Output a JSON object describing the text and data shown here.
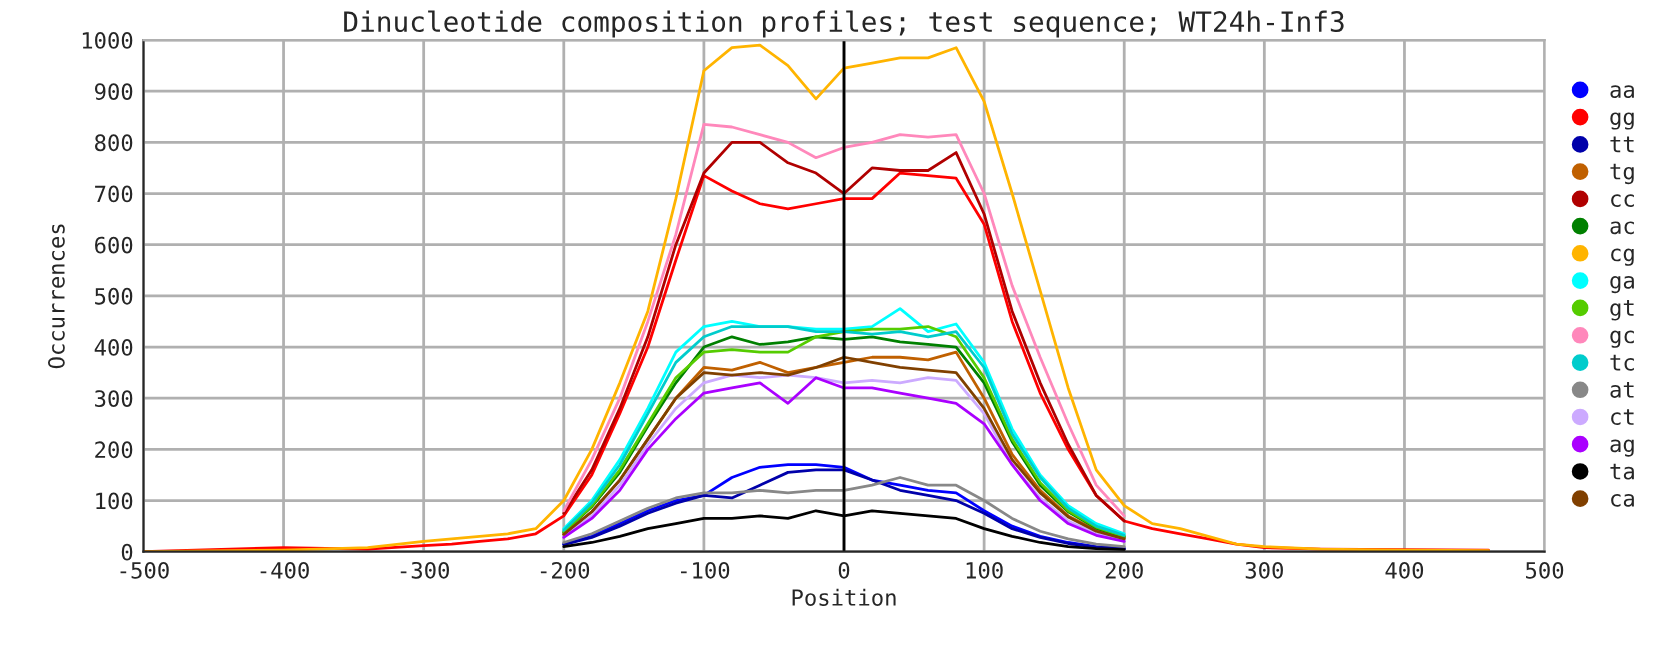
{
  "chart_data": {
    "type": "line",
    "title": "Dinucleotide composition profiles; test sequence; WT24h-Inf3",
    "xlabel": "Position",
    "ylabel": "Occurrences",
    "x": [
      -500,
      -400,
      -340,
      -300,
      -280,
      -260,
      -240,
      -220,
      -200,
      -180,
      -160,
      -140,
      -120,
      -100,
      -80,
      -60,
      -40,
      -20,
      0,
      20,
      40,
      60,
      80,
      100,
      120,
      140,
      160,
      180,
      200,
      220,
      240,
      260,
      280,
      300,
      340,
      400,
      460
    ],
    "xlim": [
      -500,
      500
    ],
    "xticks": [
      -500,
      -400,
      -300,
      -200,
      -100,
      0,
      100,
      200,
      300,
      400,
      500
    ],
    "ylim": [
      0,
      1000
    ],
    "yticks": [
      0,
      100,
      200,
      300,
      400,
      500,
      600,
      700,
      800,
      900,
      1000
    ],
    "grid": true,
    "legend": "right",
    "ref_lines": [
      {
        "axis": "x",
        "value": 0,
        "color": "#000000"
      }
    ],
    "series": [
      {
        "name": "aa",
        "color": "#0000ff",
        "values": [
          null,
          null,
          null,
          null,
          null,
          null,
          null,
          null,
          15,
          30,
          55,
          80,
          100,
          110,
          145,
          165,
          170,
          170,
          165,
          140,
          130,
          120,
          115,
          80,
          50,
          30,
          18,
          10,
          6,
          null,
          null,
          null,
          null,
          null,
          null,
          null,
          null
        ]
      },
      {
        "name": "gg",
        "color": "#ff0000",
        "values": [
          0,
          8,
          5,
          12,
          15,
          20,
          25,
          35,
          70,
          150,
          270,
          400,
          570,
          735,
          705,
          680,
          670,
          680,
          690,
          690,
          740,
          735,
          730,
          640,
          450,
          310,
          200,
          110,
          60,
          45,
          35,
          25,
          15,
          8,
          5,
          4,
          3
        ]
      },
      {
        "name": "tt",
        "color": "#0000aa",
        "values": [
          null,
          null,
          null,
          null,
          null,
          null,
          null,
          null,
          14,
          28,
          50,
          75,
          95,
          110,
          105,
          130,
          155,
          160,
          160,
          140,
          120,
          110,
          100,
          75,
          45,
          28,
          16,
          9,
          6,
          null,
          null,
          null,
          null,
          null,
          null,
          null,
          null
        ]
      },
      {
        "name": "tg",
        "color": "#c06000",
        "values": [
          null,
          null,
          null,
          null,
          null,
          null,
          null,
          null,
          34,
          78,
          140,
          220,
          300,
          360,
          355,
          370,
          350,
          360,
          370,
          380,
          380,
          375,
          390,
          300,
          190,
          120,
          70,
          42,
          27,
          null,
          null,
          null,
          null,
          null,
          null,
          null,
          null
        ]
      },
      {
        "name": "cc",
        "color": "#b00000",
        "values": [
          null,
          null,
          null,
          null,
          null,
          null,
          null,
          null,
          75,
          160,
          280,
          420,
          600,
          740,
          800,
          800,
          760,
          740,
          700,
          750,
          745,
          745,
          780,
          660,
          470,
          330,
          210,
          110,
          60,
          null,
          null,
          null,
          null,
          null,
          null,
          null,
          null
        ]
      },
      {
        "name": "ac",
        "color": "#008000",
        "values": [
          null,
          null,
          null,
          null,
          null,
          null,
          null,
          null,
          38,
          88,
          155,
          245,
          330,
          400,
          420,
          405,
          410,
          420,
          415,
          420,
          410,
          405,
          400,
          330,
          215,
          130,
          78,
          46,
          29,
          null,
          null,
          null,
          null,
          null,
          null,
          null,
          null
        ]
      },
      {
        "name": "cg",
        "color": "#ffb400",
        "values": [
          0,
          3,
          8,
          20,
          25,
          30,
          35,
          45,
          100,
          200,
          330,
          470,
          690,
          940,
          985,
          990,
          950,
          885,
          945,
          955,
          965,
          965,
          985,
          880,
          700,
          510,
          320,
          160,
          90,
          55,
          45,
          30,
          15,
          10,
          5,
          3,
          2
        ]
      },
      {
        "name": "ga",
        "color": "#00ffff",
        "values": [
          null,
          null,
          null,
          null,
          null,
          null,
          null,
          null,
          45,
          100,
          180,
          280,
          390,
          440,
          450,
          440,
          440,
          435,
          435,
          440,
          475,
          430,
          445,
          370,
          240,
          150,
          90,
          55,
          35,
          null,
          null,
          null,
          null,
          null,
          null,
          null,
          null
        ]
      },
      {
        "name": "gt",
        "color": "#55cc00",
        "values": [
          null,
          null,
          null,
          null,
          null,
          null,
          null,
          null,
          38,
          90,
          160,
          250,
          340,
          390,
          395,
          390,
          390,
          420,
          430,
          435,
          435,
          440,
          420,
          340,
          220,
          135,
          80,
          48,
          30,
          null,
          null,
          null,
          null,
          null,
          null,
          null,
          null
        ]
      },
      {
        "name": "gc",
        "color": "#ff88bb",
        "values": [
          null,
          null,
          null,
          null,
          null,
          null,
          null,
          null,
          80,
          180,
          300,
          450,
          620,
          835,
          830,
          815,
          800,
          770,
          790,
          800,
          815,
          810,
          815,
          700,
          520,
          380,
          250,
          130,
          70,
          null,
          null,
          null,
          null,
          null,
          null,
          null,
          null
        ]
      },
      {
        "name": "tc",
        "color": "#00cccc",
        "values": [
          null,
          null,
          null,
          null,
          null,
          null,
          null,
          null,
          42,
          95,
          170,
          270,
          370,
          420,
          440,
          440,
          440,
          430,
          430,
          425,
          430,
          420,
          430,
          360,
          230,
          145,
          85,
          50,
          32,
          null,
          null,
          null,
          null,
          null,
          null,
          null,
          null
        ]
      },
      {
        "name": "at",
        "color": "#888888",
        "values": [
          null,
          null,
          null,
          null,
          null,
          null,
          null,
          null,
          18,
          35,
          60,
          85,
          105,
          115,
          115,
          120,
          115,
          120,
          120,
          130,
          145,
          130,
          130,
          100,
          65,
          40,
          25,
          15,
          10,
          null,
          null,
          null,
          null,
          null,
          null,
          null,
          null
        ]
      },
      {
        "name": "ct",
        "color": "#ccaaff",
        "values": [
          null,
          null,
          null,
          null,
          null,
          null,
          null,
          null,
          30,
          70,
          130,
          210,
          280,
          330,
          345,
          340,
          345,
          340,
          330,
          335,
          330,
          340,
          335,
          270,
          170,
          105,
          60,
          35,
          22,
          null,
          null,
          null,
          null,
          null,
          null,
          null,
          null
        ]
      },
      {
        "name": "ag",
        "color": "#aa00ff",
        "values": [
          null,
          null,
          null,
          null,
          null,
          null,
          null,
          null,
          28,
          65,
          120,
          200,
          260,
          310,
          320,
          330,
          290,
          340,
          320,
          320,
          310,
          300,
          290,
          250,
          170,
          100,
          55,
          32,
          20,
          null,
          null,
          null,
          null,
          null,
          null,
          null,
          null
        ]
      },
      {
        "name": "ta",
        "color": "#000000",
        "values": [
          null,
          null,
          null,
          null,
          null,
          null,
          null,
          null,
          10,
          18,
          30,
          45,
          55,
          65,
          65,
          70,
          65,
          80,
          70,
          80,
          75,
          70,
          65,
          45,
          30,
          18,
          10,
          6,
          4,
          null,
          null,
          null,
          null,
          null,
          null,
          null,
          null
        ]
      },
      {
        "name": "ca",
        "color": "#804000",
        "values": [
          null,
          null,
          null,
          null,
          null,
          null,
          null,
          null,
          34,
          78,
          140,
          220,
          300,
          350,
          345,
          350,
          345,
          360,
          380,
          370,
          360,
          355,
          350,
          280,
          180,
          115,
          68,
          40,
          25,
          null,
          null,
          null,
          null,
          null,
          null,
          null,
          null
        ]
      }
    ]
  }
}
